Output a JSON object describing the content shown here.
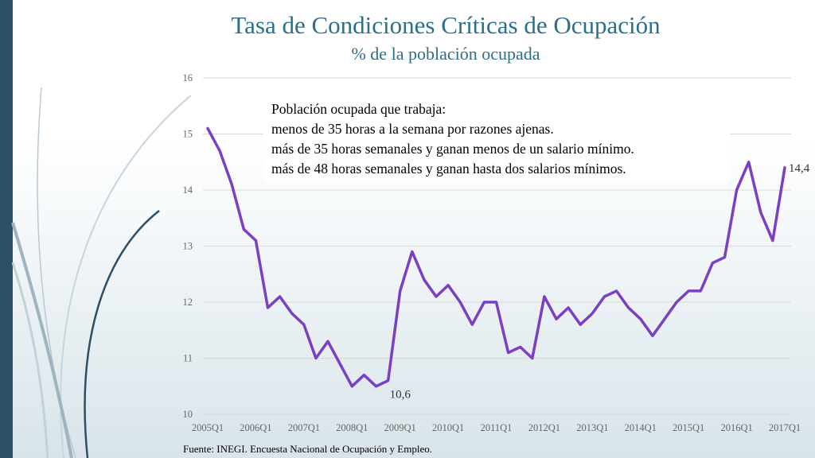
{
  "slide": {
    "title": "Tasa de Condiciones Críticas de Ocupación",
    "subtitle": "% de la población ocupada",
    "source": "Fuente: INEGI. Encuesta Nacional de Ocupación y Empleo.",
    "note_lines": [
      "Población ocupada que trabaja:",
      "menos de 35 horas a la semana por razones ajenas.",
      "más de 35 horas semanales y ganan menos de un salario mínimo.",
      "más de 48 horas semanales y ganan hasta dos salarios mínimos."
    ]
  },
  "colors": {
    "line": "#7b3fc4",
    "title": "#2c6f8a",
    "gridline": "#d9d9d9",
    "sidebar": "#2c4f66"
  },
  "chart_data": {
    "type": "line",
    "title": "Tasa de Condiciones Críticas de Ocupación",
    "subtitle": "% de la población ocupada",
    "xlabel": "",
    "ylabel": "",
    "ylim": [
      10,
      16
    ],
    "yticks": [
      10,
      11,
      12,
      13,
      14,
      15,
      16
    ],
    "grid": true,
    "x": [
      "2005Q1",
      "2005Q2",
      "2005Q3",
      "2005Q4",
      "2006Q1",
      "2006Q2",
      "2006Q3",
      "2006Q4",
      "2007Q1",
      "2007Q2",
      "2007Q3",
      "2007Q4",
      "2008Q1",
      "2008Q2",
      "2008Q3",
      "2008Q4",
      "2009Q1",
      "2009Q2",
      "2009Q3",
      "2009Q4",
      "2010Q1",
      "2010Q2",
      "2010Q3",
      "2010Q4",
      "2011Q1",
      "2011Q2",
      "2011Q3",
      "2011Q4",
      "2012Q1",
      "2012Q2",
      "2012Q3",
      "2012Q4",
      "2013Q1",
      "2013Q2",
      "2013Q3",
      "2013Q4",
      "2014Q1",
      "2014Q2",
      "2014Q3",
      "2014Q4",
      "2015Q1",
      "2015Q2",
      "2015Q3",
      "2015Q4",
      "2016Q1",
      "2016Q2",
      "2016Q3",
      "2016Q4",
      "2017Q1"
    ],
    "x_tick_labels": [
      "2005Q1",
      "2006Q1",
      "2007Q1",
      "2008Q1",
      "2009Q1",
      "2010Q1",
      "2011Q1",
      "2012Q1",
      "2013Q1",
      "2014Q1",
      "2015Q1",
      "2016Q1",
      "2017Q1"
    ],
    "series": [
      {
        "values": [
          15.1,
          14.7,
          14.1,
          13.3,
          13.1,
          11.9,
          12.1,
          11.8,
          11.6,
          11.0,
          11.3,
          10.9,
          10.5,
          10.7,
          10.5,
          10.6,
          12.2,
          12.9,
          12.4,
          12.1,
          12.3,
          12.0,
          11.6,
          12.0,
          12.0,
          11.1,
          11.2,
          11.0,
          12.1,
          11.7,
          11.9,
          11.6,
          11.8,
          12.1,
          12.2,
          11.9,
          11.7,
          11.4,
          11.7,
          12.0,
          12.2,
          12.2,
          12.7,
          12.8,
          14.0,
          14.5,
          13.6,
          13.1,
          14.4
        ]
      }
    ],
    "annotations": [
      {
        "x": "2008Q4",
        "text": "10,6"
      },
      {
        "x": "2017Q1",
        "text": "14,4"
      }
    ]
  }
}
